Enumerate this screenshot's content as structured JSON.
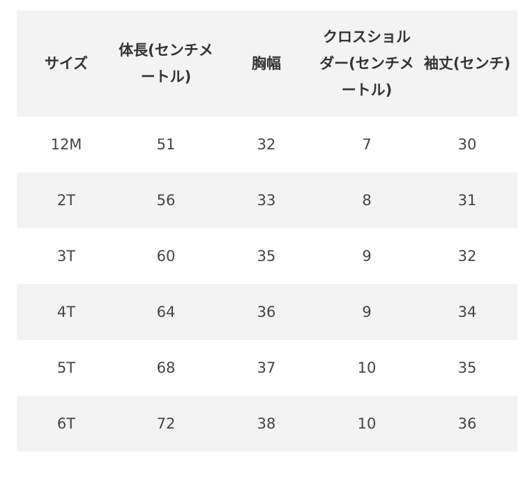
{
  "size_table": {
    "headers": [
      "サイズ",
      "体長(センチメートル)",
      "胸幅",
      "クロスショルダー(センチメートル)",
      "袖丈(センチ)"
    ],
    "rows": [
      [
        "12M",
        "51",
        "32",
        "7",
        "30"
      ],
      [
        "2T",
        "56",
        "33",
        "8",
        "31"
      ],
      [
        "3T",
        "60",
        "35",
        "9",
        "32"
      ],
      [
        "4T",
        "64",
        "36",
        "9",
        "34"
      ],
      [
        "5T",
        "68",
        "37",
        "10",
        "35"
      ],
      [
        "6T",
        "72",
        "38",
        "10",
        "36"
      ]
    ]
  },
  "colors": {
    "shaded_background": "#f3f3f3",
    "text": "#333333"
  }
}
